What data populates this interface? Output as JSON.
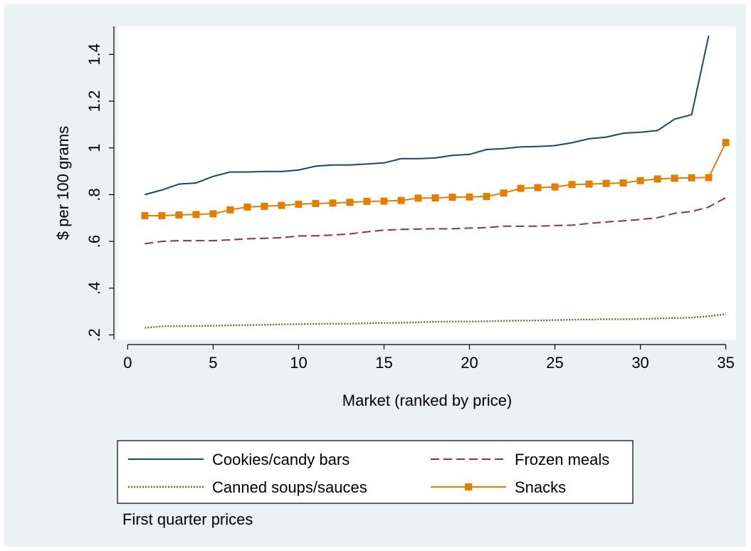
{
  "chart_data": {
    "type": "line",
    "title": "",
    "xlabel": "Market (ranked by price)",
    "ylabel": "$ per 100 grams",
    "note": "First quarter prices",
    "xlim": [
      -0.6,
      35.6
    ],
    "ylim": [
      0.18,
      1.52
    ],
    "xticks": [
      0,
      5,
      10,
      15,
      20,
      25,
      30,
      35
    ],
    "xtick_labels": [
      "0",
      "5",
      "10",
      "15",
      "20",
      "25",
      "30",
      "35"
    ],
    "yticks": [
      0.2,
      0.4,
      0.6,
      0.8,
      1.0,
      1.2,
      1.4
    ],
    "ytick_labels": [
      ".2",
      ".4",
      ".6",
      ".8",
      "1",
      "1.2",
      "1.4"
    ],
    "grid": false,
    "legend_position": "bottom",
    "series": [
      {
        "name": "Cookies/candy bars",
        "color": "#1a476f",
        "style": "solid",
        "marker": "none",
        "x": [
          1,
          2,
          3,
          4,
          5,
          6,
          7,
          8,
          9,
          10,
          11,
          12,
          13,
          14,
          15,
          16,
          17,
          18,
          19,
          20,
          21,
          22,
          23,
          24,
          25,
          26,
          27,
          28,
          29,
          30,
          31,
          32,
          33,
          34
        ],
        "y": [
          0.8,
          0.82,
          0.845,
          0.85,
          0.878,
          0.897,
          0.897,
          0.899,
          0.899,
          0.905,
          0.922,
          0.927,
          0.927,
          0.931,
          0.936,
          0.954,
          0.954,
          0.957,
          0.968,
          0.972,
          0.993,
          0.997,
          1.004,
          1.006,
          1.01,
          1.022,
          1.039,
          1.046,
          1.063,
          1.067,
          1.074,
          1.123,
          1.142,
          1.48
        ]
      },
      {
        "name": "Frozen meals",
        "color": "#90353b",
        "style": "dashed",
        "marker": "none",
        "x": [
          1,
          2,
          3,
          4,
          5,
          6,
          7,
          8,
          9,
          10,
          11,
          12,
          13,
          14,
          15,
          16,
          17,
          18,
          19,
          20,
          21,
          22,
          23,
          24,
          25,
          26,
          27,
          28,
          29,
          30,
          31,
          32,
          33,
          34,
          35
        ],
        "y": [
          0.59,
          0.6,
          0.603,
          0.603,
          0.603,
          0.607,
          0.611,
          0.613,
          0.616,
          0.623,
          0.624,
          0.627,
          0.632,
          0.641,
          0.648,
          0.651,
          0.653,
          0.654,
          0.654,
          0.657,
          0.659,
          0.665,
          0.665,
          0.665,
          0.668,
          0.669,
          0.677,
          0.683,
          0.688,
          0.694,
          0.701,
          0.72,
          0.728,
          0.747,
          0.787
        ]
      },
      {
        "name": "Canned soups/sauces",
        "color": "#55752f",
        "style": "dotted",
        "marker": "none",
        "x": [
          1,
          2,
          3,
          4,
          5,
          6,
          7,
          8,
          9,
          10,
          11,
          12,
          13,
          14,
          15,
          16,
          17,
          18,
          19,
          20,
          21,
          22,
          23,
          24,
          25,
          26,
          27,
          28,
          29,
          30,
          31,
          32,
          33,
          34,
          35
        ],
        "y": [
          0.23,
          0.237,
          0.238,
          0.238,
          0.239,
          0.241,
          0.242,
          0.243,
          0.245,
          0.246,
          0.247,
          0.248,
          0.248,
          0.25,
          0.251,
          0.252,
          0.254,
          0.256,
          0.257,
          0.257,
          0.258,
          0.26,
          0.261,
          0.262,
          0.263,
          0.265,
          0.266,
          0.267,
          0.267,
          0.268,
          0.27,
          0.272,
          0.274,
          0.28,
          0.289
        ]
      },
      {
        "name": "Snacks",
        "color": "#e37e00",
        "style": "solid",
        "marker": "square",
        "x": [
          1,
          2,
          3,
          4,
          5,
          6,
          7,
          8,
          9,
          10,
          11,
          12,
          13,
          14,
          15,
          16,
          17,
          18,
          19,
          20,
          21,
          22,
          23,
          24,
          25,
          26,
          27,
          28,
          29,
          30,
          31,
          32,
          33,
          34,
          35
        ],
        "y": [
          0.71,
          0.71,
          0.713,
          0.715,
          0.718,
          0.735,
          0.747,
          0.75,
          0.754,
          0.759,
          0.762,
          0.764,
          0.767,
          0.771,
          0.772,
          0.775,
          0.785,
          0.786,
          0.789,
          0.79,
          0.792,
          0.807,
          0.827,
          0.83,
          0.833,
          0.843,
          0.845,
          0.848,
          0.85,
          0.86,
          0.867,
          0.87,
          0.872,
          0.873,
          1.023
        ]
      }
    ]
  }
}
